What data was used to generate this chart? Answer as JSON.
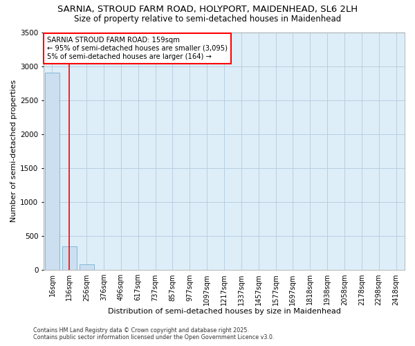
{
  "title_line1": "SARNIA, STROUD FARM ROAD, HOLYPORT, MAIDENHEAD, SL6 2LH",
  "title_line2": "Size of property relative to semi-detached houses in Maidenhead",
  "xlabel": "Distribution of semi-detached houses by size in Maidenhead",
  "ylabel": "Number of semi-detached properties",
  "bins": [
    "16sqm",
    "136sqm",
    "256sqm",
    "376sqm",
    "496sqm",
    "617sqm",
    "737sqm",
    "857sqm",
    "977sqm",
    "1097sqm",
    "1217sqm",
    "1337sqm",
    "1457sqm",
    "1577sqm",
    "1697sqm",
    "1818sqm",
    "1938sqm",
    "2058sqm",
    "2178sqm",
    "2298sqm",
    "2418sqm"
  ],
  "values": [
    2900,
    350,
    80,
    5,
    2,
    1,
    1,
    0,
    0,
    0,
    0,
    0,
    0,
    0,
    0,
    0,
    0,
    0,
    0,
    0,
    0
  ],
  "bar_color": "#ccdff0",
  "bar_edge_color": "#7aafd4",
  "red_line_x": 1.0,
  "annotation_title": "SARNIA STROUD FARM ROAD: 159sqm",
  "annotation_line2": "← 95% of semi-detached houses are smaller (3,095)",
  "annotation_line3": "5% of semi-detached houses are larger (164) →",
  "annotation_box_color": "white",
  "annotation_box_edge_color": "red",
  "ylim": [
    0,
    3500
  ],
  "yticks": [
    0,
    500,
    1000,
    1500,
    2000,
    2500,
    3000,
    3500
  ],
  "grid_color": "#b8cfe0",
  "background_color": "#ddeef8",
  "footer_line1": "Contains HM Land Registry data © Crown copyright and database right 2025.",
  "footer_line2": "Contains public sector information licensed under the Open Government Licence v3.0.",
  "title_fontsize": 9.5,
  "subtitle_fontsize": 8.5,
  "axis_label_fontsize": 8,
  "tick_fontsize": 7
}
